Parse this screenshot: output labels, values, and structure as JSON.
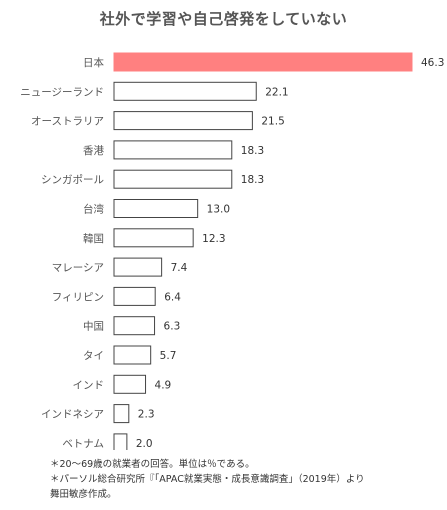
{
  "chart_data": {
    "type": "bar",
    "orientation": "horizontal",
    "title": "社外で学習や自己啓発をしていない",
    "categories": [
      "日本",
      "ニュージーランド",
      "オーストラリア",
      "香港",
      "シンガポール",
      "台湾",
      "韓国",
      "マレーシア",
      "フィリピン",
      "中国",
      "タイ",
      "インド",
      "インドネシア",
      "ベトナム"
    ],
    "values": [
      46.3,
      22.1,
      21.5,
      18.3,
      18.3,
      13.0,
      12.3,
      7.4,
      6.4,
      6.3,
      5.7,
      4.9,
      2.3,
      2.0
    ],
    "value_labels": [
      "46.3",
      "22.1",
      "21.5",
      "18.3",
      "18.3",
      "13.0",
      "12.3",
      "7.4",
      "6.4",
      "6.3",
      "5.7",
      "4.9",
      "2.3",
      "2.0"
    ],
    "xlabel": "",
    "ylabel": "",
    "xlim": [
      0,
      46.3
    ],
    "grid": false,
    "highlight_index": 0,
    "colors": {
      "highlight_fill": "#ff8080",
      "bar_fill": "#ffffff",
      "bar_stroke": "#444444"
    }
  },
  "notes": [
    "＊20〜69歳の就業者の回答。単位は％である。",
    "＊パーソル総合研究所『「APAC就業実態・成長意識調査」（2019年）より",
    "舞田敏彦作成。"
  ]
}
